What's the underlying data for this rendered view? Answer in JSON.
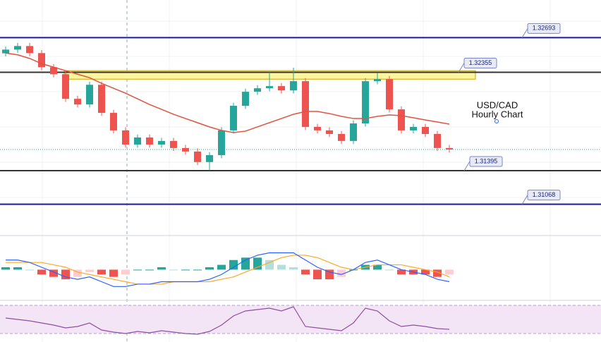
{
  "chart_data": [
    {
      "type": "candlestick",
      "open": [
        1.3254,
        1.32576,
        1.32611,
        1.32542,
        1.32405,
        1.32336,
        1.32096,
        1.32041,
        1.32233,
        1.31959,
        1.31788,
        1.3165,
        1.31719,
        1.3165,
        1.31685,
        1.31616,
        1.31582,
        1.31479,
        1.31547,
        1.31788,
        1.32028,
        1.32165,
        1.32199,
        1.3222,
        1.32178,
        1.32268,
        1.31822,
        1.31788,
        1.31753,
        1.31685,
        1.31856,
        1.32268,
        1.32288,
        1.31993,
        1.31788,
        1.31822,
        1.31753,
        1.31616
      ],
      "high": [
        1.32606,
        1.32641,
        1.32641,
        1.32572,
        1.32435,
        1.32366,
        1.32126,
        1.32263,
        1.32263,
        1.31989,
        1.31818,
        1.31749,
        1.31749,
        1.31715,
        1.31715,
        1.31646,
        1.31612,
        1.31577,
        1.31818,
        1.32058,
        1.32195,
        1.32229,
        1.32355,
        1.3225,
        1.324,
        1.32298,
        1.31852,
        1.31818,
        1.31783,
        1.31886,
        1.32298,
        1.3235,
        1.32318,
        1.32023,
        1.31852,
        1.31852,
        1.31783,
        1.31646
      ],
      "low": [
        1.3251,
        1.32546,
        1.32512,
        1.32375,
        1.32306,
        1.32066,
        1.32011,
        1.32011,
        1.31929,
        1.31758,
        1.3162,
        1.3162,
        1.3162,
        1.3162,
        1.31586,
        1.31552,
        1.31449,
        1.314,
        1.31517,
        1.31758,
        1.31998,
        1.32135,
        1.32169,
        1.32148,
        1.32148,
        1.31792,
        1.31758,
        1.31723,
        1.31655,
        1.31655,
        1.31826,
        1.32238,
        1.31963,
        1.31758,
        1.31758,
        1.31723,
        1.31586,
        1.31572
      ],
      "close": [
        1.32576,
        1.32611,
        1.32542,
        1.32405,
        1.32336,
        1.32096,
        1.32041,
        1.32233,
        1.31959,
        1.31788,
        1.3165,
        1.31719,
        1.3165,
        1.31685,
        1.31616,
        1.31582,
        1.31479,
        1.31547,
        1.31788,
        1.32028,
        1.32165,
        1.32199,
        1.3222,
        1.32178,
        1.32268,
        1.31822,
        1.31788,
        1.31753,
        1.31685,
        1.31856,
        1.32268,
        1.32288,
        1.31993,
        1.31788,
        1.31822,
        1.31753,
        1.31616,
        1.31602
      ],
      "up_color": "#26a69a",
      "down_color": "#ef5350",
      "moving_average": {
        "color": "#e0533f",
        "values": [
          1.32542,
          1.32525,
          1.3249,
          1.32439,
          1.32405,
          1.32371,
          1.32336,
          1.32302,
          1.32247,
          1.32199,
          1.32151,
          1.32096,
          1.32041,
          1.31993,
          1.31945,
          1.31904,
          1.31863,
          1.31822,
          1.31788,
          1.31767,
          1.31781,
          1.31822,
          1.31863,
          1.31904,
          1.31945,
          1.31973,
          1.31973,
          1.31952,
          1.31925,
          1.31904,
          1.31904,
          1.31925,
          1.31939,
          1.31932,
          1.31911,
          1.3189,
          1.3187,
          1.31849
        ]
      },
      "levels": [
        {
          "value": 1.32693,
          "color": "#1a1aa6"
        },
        {
          "value": 1.32355,
          "color": "#333333"
        },
        {
          "value": 1.31395,
          "color": "#333333"
        },
        {
          "value": 1.31068,
          "color": "#1a1aa6"
        }
      ],
      "zone": {
        "range": [
          1.32288,
          1.32371
        ],
        "color": "#fff59d"
      },
      "annotation": [
        "USD/CAD",
        "Hourly Chart"
      ],
      "ylim": [
        1.3079,
        1.3306
      ]
    },
    {
      "type": "macd",
      "macd": {
        "color": "#2962ff",
        "values": [
          0.0004,
          0.0004,
          0.0003,
          0.0001,
          -0.0001,
          -0.0003,
          -0.0004,
          -0.0003,
          -0.0005,
          -0.0007,
          -0.0007,
          -0.0006,
          -0.0006,
          -0.0005,
          -0.0005,
          -0.0005,
          -0.0005,
          -0.0004,
          -0.0002,
          0.0001,
          0.0004,
          0.0006,
          0.0007,
          0.0007,
          0.0007,
          0.0004,
          0.0001,
          -0.0001,
          -0.0002,
          0.0,
          0.0003,
          0.0004,
          0.0002,
          0.0,
          -0.0001,
          -0.0002,
          -0.0004,
          -0.0005
        ]
      },
      "signal": {
        "color": "#ffa726",
        "values": [
          0.0003,
          0.0003,
          0.0003,
          0.0003,
          0.0002,
          0.0001,
          -0.0001,
          -0.0002,
          -0.0003,
          -0.0004,
          -0.0005,
          -0.0006,
          -0.0006,
          -0.0006,
          -0.0005,
          -0.0005,
          -0.0005,
          -0.0005,
          -0.0004,
          -0.0003,
          -0.0001,
          0.0001,
          0.0003,
          0.0005,
          0.0006,
          0.0006,
          0.0005,
          0.0003,
          0.0001,
          0.0,
          0.0001,
          0.0002,
          0.0002,
          0.0002,
          0.0001,
          0.0,
          -0.0001,
          -0.0003
        ]
      },
      "histogram": {
        "colors": [
          "#26a69a",
          "#b2dfdb",
          "#ef5350",
          "#ffcdd2"
        ],
        "values": [
          0.0001,
          0.0001,
          0.0,
          -0.0002,
          -0.0003,
          -0.0004,
          -0.0003,
          -0.0001,
          -0.0002,
          -0.0003,
          -0.0002,
          0.0,
          0.0,
          0.0001,
          0.0,
          0.0,
          0.0,
          0.0001,
          0.0002,
          0.0004,
          0.0005,
          0.0005,
          0.0004,
          0.0002,
          0.0001,
          -0.0002,
          -0.0004,
          -0.0004,
          -0.0003,
          0.0,
          0.0002,
          0.0002,
          0.0,
          -0.0002,
          -0.0002,
          -0.0002,
          -0.0003,
          -0.0002
        ]
      },
      "ylim": [
        -0.0011,
        0.0013
      ]
    },
    {
      "type": "rsi",
      "values": [
        52,
        50,
        48,
        45,
        42,
        38,
        40,
        45,
        35,
        32,
        30,
        33,
        31,
        34,
        32,
        30,
        29,
        33,
        42,
        55,
        62,
        64,
        66,
        62,
        68,
        40,
        38,
        36,
        34,
        45,
        66,
        62,
        48,
        40,
        42,
        40,
        37,
        36
      ],
      "color": "#8e4fa0",
      "band": [
        30,
        70
      ],
      "band_color": "#f3e5f5",
      "ylim": [
        18,
        73
      ]
    }
  ]
}
